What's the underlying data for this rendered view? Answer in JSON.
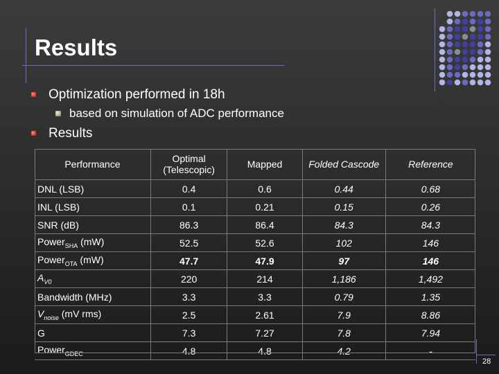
{
  "slide": {
    "title": "Results",
    "page_number": "28",
    "colors": {
      "accent": "#6d6dc8",
      "bullet": "#c0180f"
    }
  },
  "bullets": [
    {
      "text": "Optimization performed in 18h",
      "level": 1
    },
    {
      "text": "based on simulation of ADC performance",
      "level": 2
    },
    {
      "text": "Results",
      "level": 1
    }
  ],
  "table": {
    "headers": [
      "Performance",
      "Optimal (Telescopic)",
      "Mapped",
      "Folded Cascode",
      "Reference"
    ],
    "rows": [
      {
        "label": "DNL (LSB)",
        "sub": "",
        "suffix": "",
        "values": [
          "0.4",
          "0.6",
          "0.44",
          "0.68"
        ]
      },
      {
        "label": "INL (LSB)",
        "sub": "",
        "suffix": "",
        "values": [
          "0.1",
          "0.21",
          "0.15",
          "0.26"
        ]
      },
      {
        "label": "SNR (dB)",
        "sub": "",
        "suffix": "",
        "values": [
          "86.3",
          "86.4",
          "84.3",
          "84.3"
        ]
      },
      {
        "label": "Power",
        "sub": "SHA",
        "suffix": " (mW)",
        "values": [
          "52.5",
          "52.6",
          "102",
          "146"
        ]
      },
      {
        "label": "Power",
        "sub": "OTA",
        "suffix": " (mW)",
        "values": [
          "47.7",
          "47.9",
          "97",
          "146"
        ]
      },
      {
        "label": "A",
        "sub": "V0",
        "suffix": "",
        "values": [
          "220",
          "214",
          "1,186",
          "1,492"
        ]
      },
      {
        "label": "Bandwidth (MHz)",
        "sub": "",
        "suffix": "",
        "values": [
          "3.3",
          "3.3",
          "0.79",
          "1.35"
        ]
      },
      {
        "label": "V",
        "sub": "noise",
        "suffix": " (mV rms)",
        "values": [
          "2.5",
          "2.61",
          "7.9",
          "8.86"
        ]
      },
      {
        "label": "G",
        "sub": "",
        "suffix": "",
        "values": [
          "7.3",
          "7.27",
          "7.8",
          "7.94"
        ]
      },
      {
        "label": "Power",
        "sub": "GDEC",
        "suffix": "",
        "values": [
          "4.8",
          "4.8",
          "4.2",
          "-"
        ]
      }
    ]
  }
}
